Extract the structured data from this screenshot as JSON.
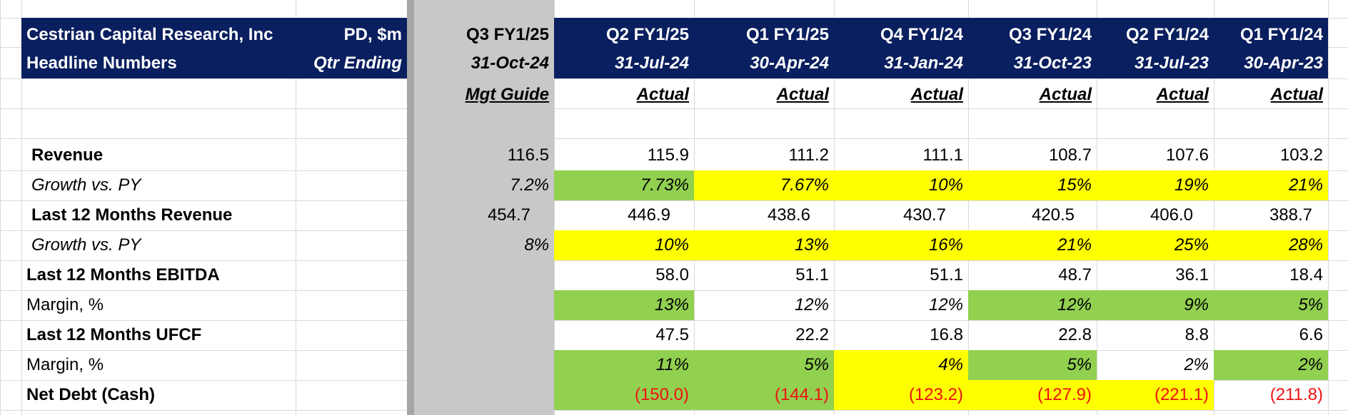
{
  "header": {
    "title_line1": "Cestrian Capital Research, Inc",
    "title_line2": "Headline Numbers",
    "units_line1": "PD, $m",
    "units_line2": "Qtr Ending"
  },
  "columns": [
    {
      "period": "Q3 FY1/25",
      "date": "31-Oct-24",
      "basis": "Mgt Guide"
    },
    {
      "period": "Q2 FY1/25",
      "date": "31-Jul-24",
      "basis": "Actual"
    },
    {
      "period": "Q1 FY1/25",
      "date": "30-Apr-24",
      "basis": "Actual"
    },
    {
      "period": "Q4 FY1/24",
      "date": "31-Jan-24",
      "basis": "Actual"
    },
    {
      "period": "Q3 FY1/24",
      "date": "31-Oct-23",
      "basis": "Actual"
    },
    {
      "period": "Q2 FY1/24",
      "date": "31-Jul-23",
      "basis": "Actual"
    },
    {
      "period": "Q1 FY1/24",
      "date": "30-Apr-23",
      "basis": "Actual"
    }
  ],
  "rows": [
    {
      "label": "Revenue",
      "style": "bold",
      "values": [
        "116.5",
        "115.9",
        "111.2",
        "111.1",
        "108.7",
        "107.6",
        "103.2"
      ]
    },
    {
      "label": "Growth vs. PY",
      "style": "italic",
      "values": [
        "7.2%",
        "7.73%",
        "7.67%",
        "10%",
        "15%",
        "19%",
        "21%"
      ]
    },
    {
      "label": "Last 12 Months Revenue",
      "style": "bold",
      "values": [
        "454.7",
        "446.9",
        "438.6",
        "430.7",
        "420.5",
        "406.0",
        "388.7"
      ]
    },
    {
      "label": "Growth vs. PY",
      "style": "italic",
      "values": [
        "8%",
        "10%",
        "13%",
        "16%",
        "21%",
        "25%",
        "28%"
      ]
    },
    {
      "label": "Last 12 Months EBITDA",
      "style": "bold",
      "values": [
        "",
        "58.0",
        "51.1",
        "51.1",
        "48.7",
        "36.1",
        "18.4"
      ]
    },
    {
      "label": "Margin, %",
      "style": "plain",
      "values": [
        "",
        "13%",
        "12%",
        "12%",
        "12%",
        "9%",
        "5%"
      ]
    },
    {
      "label": "Last 12 Months UFCF",
      "style": "bold",
      "values": [
        "",
        "47.5",
        "22.2",
        "16.8",
        "22.8",
        "8.8",
        "6.6"
      ]
    },
    {
      "label": "Margin, %",
      "style": "plain",
      "values": [
        "",
        "11%",
        "5%",
        "4%",
        "5%",
        "2%",
        "2%"
      ]
    },
    {
      "label": "Net Debt (Cash)",
      "style": "bold",
      "values": [
        "",
        "(150.0)",
        "(144.1)",
        "(123.2)",
        "(127.9)",
        "(221.1)",
        "(211.8)"
      ]
    }
  ],
  "colors": {
    "header_navy": "#0a1f5f",
    "highlight_green": "#92d050",
    "highlight_yellow": "#ffff00",
    "guide_column_grey": "#c8c8c8",
    "negative_red": "#ee1111"
  }
}
